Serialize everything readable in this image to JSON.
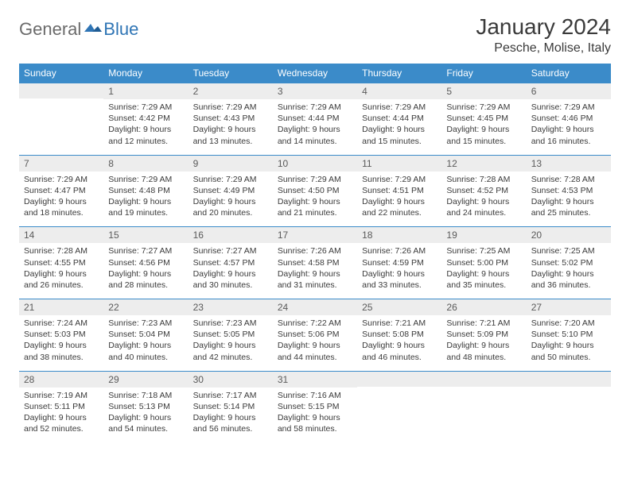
{
  "logo": {
    "general": "General",
    "blue": "Blue"
  },
  "title": "January 2024",
  "location": "Pesche, Molise, Italy",
  "dayNames": [
    "Sunday",
    "Monday",
    "Tuesday",
    "Wednesday",
    "Thursday",
    "Friday",
    "Saturday"
  ],
  "colors": {
    "header_bg": "#3b8bc9",
    "header_text": "#ffffff",
    "daynum_bg": "#ededed",
    "daynum_text": "#5a5a5a",
    "body_text": "#3a3a3a",
    "rule": "#3b8bc9",
    "logo_gray": "#6a6a6a",
    "logo_blue": "#2f75b5"
  },
  "typography": {
    "title_fontsize": 28,
    "location_fontsize": 16,
    "dayhead_fontsize": 12,
    "daynum_fontsize": 12,
    "body_fontsize": 10.5
  },
  "weeks": [
    [
      null,
      {
        "n": "1",
        "sr": "Sunrise: 7:29 AM",
        "ss": "Sunset: 4:42 PM",
        "d1": "Daylight: 9 hours",
        "d2": "and 12 minutes."
      },
      {
        "n": "2",
        "sr": "Sunrise: 7:29 AM",
        "ss": "Sunset: 4:43 PM",
        "d1": "Daylight: 9 hours",
        "d2": "and 13 minutes."
      },
      {
        "n": "3",
        "sr": "Sunrise: 7:29 AM",
        "ss": "Sunset: 4:44 PM",
        "d1": "Daylight: 9 hours",
        "d2": "and 14 minutes."
      },
      {
        "n": "4",
        "sr": "Sunrise: 7:29 AM",
        "ss": "Sunset: 4:44 PM",
        "d1": "Daylight: 9 hours",
        "d2": "and 15 minutes."
      },
      {
        "n": "5",
        "sr": "Sunrise: 7:29 AM",
        "ss": "Sunset: 4:45 PM",
        "d1": "Daylight: 9 hours",
        "d2": "and 15 minutes."
      },
      {
        "n": "6",
        "sr": "Sunrise: 7:29 AM",
        "ss": "Sunset: 4:46 PM",
        "d1": "Daylight: 9 hours",
        "d2": "and 16 minutes."
      }
    ],
    [
      {
        "n": "7",
        "sr": "Sunrise: 7:29 AM",
        "ss": "Sunset: 4:47 PM",
        "d1": "Daylight: 9 hours",
        "d2": "and 18 minutes."
      },
      {
        "n": "8",
        "sr": "Sunrise: 7:29 AM",
        "ss": "Sunset: 4:48 PM",
        "d1": "Daylight: 9 hours",
        "d2": "and 19 minutes."
      },
      {
        "n": "9",
        "sr": "Sunrise: 7:29 AM",
        "ss": "Sunset: 4:49 PM",
        "d1": "Daylight: 9 hours",
        "d2": "and 20 minutes."
      },
      {
        "n": "10",
        "sr": "Sunrise: 7:29 AM",
        "ss": "Sunset: 4:50 PM",
        "d1": "Daylight: 9 hours",
        "d2": "and 21 minutes."
      },
      {
        "n": "11",
        "sr": "Sunrise: 7:29 AM",
        "ss": "Sunset: 4:51 PM",
        "d1": "Daylight: 9 hours",
        "d2": "and 22 minutes."
      },
      {
        "n": "12",
        "sr": "Sunrise: 7:28 AM",
        "ss": "Sunset: 4:52 PM",
        "d1": "Daylight: 9 hours",
        "d2": "and 24 minutes."
      },
      {
        "n": "13",
        "sr": "Sunrise: 7:28 AM",
        "ss": "Sunset: 4:53 PM",
        "d1": "Daylight: 9 hours",
        "d2": "and 25 minutes."
      }
    ],
    [
      {
        "n": "14",
        "sr": "Sunrise: 7:28 AM",
        "ss": "Sunset: 4:55 PM",
        "d1": "Daylight: 9 hours",
        "d2": "and 26 minutes."
      },
      {
        "n": "15",
        "sr": "Sunrise: 7:27 AM",
        "ss": "Sunset: 4:56 PM",
        "d1": "Daylight: 9 hours",
        "d2": "and 28 minutes."
      },
      {
        "n": "16",
        "sr": "Sunrise: 7:27 AM",
        "ss": "Sunset: 4:57 PM",
        "d1": "Daylight: 9 hours",
        "d2": "and 30 minutes."
      },
      {
        "n": "17",
        "sr": "Sunrise: 7:26 AM",
        "ss": "Sunset: 4:58 PM",
        "d1": "Daylight: 9 hours",
        "d2": "and 31 minutes."
      },
      {
        "n": "18",
        "sr": "Sunrise: 7:26 AM",
        "ss": "Sunset: 4:59 PM",
        "d1": "Daylight: 9 hours",
        "d2": "and 33 minutes."
      },
      {
        "n": "19",
        "sr": "Sunrise: 7:25 AM",
        "ss": "Sunset: 5:00 PM",
        "d1": "Daylight: 9 hours",
        "d2": "and 35 minutes."
      },
      {
        "n": "20",
        "sr": "Sunrise: 7:25 AM",
        "ss": "Sunset: 5:02 PM",
        "d1": "Daylight: 9 hours",
        "d2": "and 36 minutes."
      }
    ],
    [
      {
        "n": "21",
        "sr": "Sunrise: 7:24 AM",
        "ss": "Sunset: 5:03 PM",
        "d1": "Daylight: 9 hours",
        "d2": "and 38 minutes."
      },
      {
        "n": "22",
        "sr": "Sunrise: 7:23 AM",
        "ss": "Sunset: 5:04 PM",
        "d1": "Daylight: 9 hours",
        "d2": "and 40 minutes."
      },
      {
        "n": "23",
        "sr": "Sunrise: 7:23 AM",
        "ss": "Sunset: 5:05 PM",
        "d1": "Daylight: 9 hours",
        "d2": "and 42 minutes."
      },
      {
        "n": "24",
        "sr": "Sunrise: 7:22 AM",
        "ss": "Sunset: 5:06 PM",
        "d1": "Daylight: 9 hours",
        "d2": "and 44 minutes."
      },
      {
        "n": "25",
        "sr": "Sunrise: 7:21 AM",
        "ss": "Sunset: 5:08 PM",
        "d1": "Daylight: 9 hours",
        "d2": "and 46 minutes."
      },
      {
        "n": "26",
        "sr": "Sunrise: 7:21 AM",
        "ss": "Sunset: 5:09 PM",
        "d1": "Daylight: 9 hours",
        "d2": "and 48 minutes."
      },
      {
        "n": "27",
        "sr": "Sunrise: 7:20 AM",
        "ss": "Sunset: 5:10 PM",
        "d1": "Daylight: 9 hours",
        "d2": "and 50 minutes."
      }
    ],
    [
      {
        "n": "28",
        "sr": "Sunrise: 7:19 AM",
        "ss": "Sunset: 5:11 PM",
        "d1": "Daylight: 9 hours",
        "d2": "and 52 minutes."
      },
      {
        "n": "29",
        "sr": "Sunrise: 7:18 AM",
        "ss": "Sunset: 5:13 PM",
        "d1": "Daylight: 9 hours",
        "d2": "and 54 minutes."
      },
      {
        "n": "30",
        "sr": "Sunrise: 7:17 AM",
        "ss": "Sunset: 5:14 PM",
        "d1": "Daylight: 9 hours",
        "d2": "and 56 minutes."
      },
      {
        "n": "31",
        "sr": "Sunrise: 7:16 AM",
        "ss": "Sunset: 5:15 PM",
        "d1": "Daylight: 9 hours",
        "d2": "and 58 minutes."
      },
      null,
      null,
      null
    ]
  ]
}
